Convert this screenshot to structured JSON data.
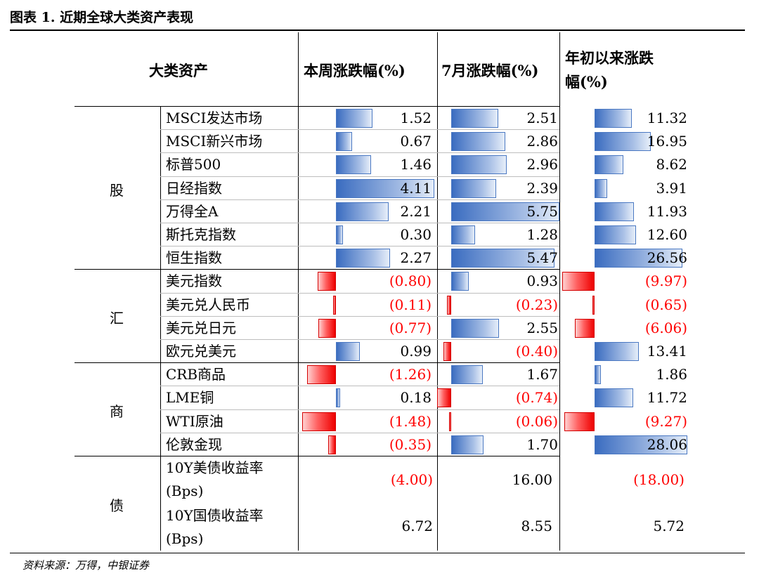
{
  "title": "图表 1. 近期全球大类资产表现",
  "source": "资料来源：万得，中银证券",
  "headers": {
    "asset": "大类资产",
    "week": "本周涨跌幅(%)",
    "month": "7月涨跌幅(%)",
    "ytd_line1": "年初以来涨跌",
    "ytd_line2": "幅(%)"
  },
  "categories": [
    "股",
    "汇",
    "商",
    "债"
  ],
  "rows": [
    {
      "name": "MSCI发达市场",
      "week": "1.52",
      "month": "2.51",
      "ytd": "11.32",
      "wv": 1.52,
      "mv": 2.51,
      "yv": 11.32
    },
    {
      "name": "MSCI新兴市场",
      "week": "0.67",
      "month": "2.86",
      "ytd": "16.95",
      "wv": 0.67,
      "mv": 2.86,
      "yv": 16.95
    },
    {
      "name": "标普500",
      "week": "1.46",
      "month": "2.96",
      "ytd": "8.62",
      "wv": 1.46,
      "mv": 2.96,
      "yv": 8.62
    },
    {
      "name": "日经指数",
      "week": "4.11",
      "month": "2.39",
      "ytd": "3.91",
      "wv": 4.11,
      "mv": 2.39,
      "yv": 3.91
    },
    {
      "name": "万得全A",
      "week": "2.21",
      "month": "5.75",
      "ytd": "11.93",
      "wv": 2.21,
      "mv": 5.75,
      "yv": 11.93
    },
    {
      "name": "斯托克指数",
      "week": "0.30",
      "month": "1.28",
      "ytd": "12.60",
      "wv": 0.3,
      "mv": 1.28,
      "yv": 12.6
    },
    {
      "name": "恒生指数",
      "week": "2.27",
      "month": "5.47",
      "ytd": "26.56",
      "wv": 2.27,
      "mv": 5.47,
      "yv": 26.56
    },
    {
      "name": "美元指数",
      "week": "(0.80)",
      "month": "0.93",
      "ytd": "(9.97)",
      "wv": -0.8,
      "mv": 0.93,
      "yv": -9.97
    },
    {
      "name": "美元兑人民币",
      "week": "(0.11)",
      "month": "(0.23)",
      "ytd": "(0.65)",
      "wv": -0.11,
      "mv": -0.23,
      "yv": -0.65
    },
    {
      "name": "美元兑日元",
      "week": "(0.77)",
      "month": "2.55",
      "ytd": "(6.06)",
      "wv": -0.77,
      "mv": 2.55,
      "yv": -6.06
    },
    {
      "name": "欧元兑美元",
      "week": "0.99",
      "month": "(0.40)",
      "ytd": "13.41",
      "wv": 0.99,
      "mv": -0.4,
      "yv": 13.41
    },
    {
      "name": "CRB商品",
      "week": "(1.26)",
      "month": "1.67",
      "ytd": "1.86",
      "wv": -1.26,
      "mv": 1.67,
      "yv": 1.86
    },
    {
      "name": "LME铜",
      "week": "0.18",
      "month": "(0.74)",
      "ytd": "11.72",
      "wv": 0.18,
      "mv": -0.74,
      "yv": 11.72
    },
    {
      "name": "WTI原油",
      "week": "(1.48)",
      "month": "(0.06)",
      "ytd": "(9.27)",
      "wv": -1.48,
      "mv": -0.06,
      "yv": -9.27
    },
    {
      "name": "伦敦金现",
      "week": "(0.35)",
      "month": "1.70",
      "ytd": "28.06",
      "wv": -0.35,
      "mv": 1.7,
      "yv": 28.06
    }
  ],
  "bond_rows": [
    {
      "name_line1": "10Y美债收益率",
      "name_line2": "(Bps)",
      "week": "(4.00)",
      "month": "16.00",
      "ytd": "(18.00)"
    },
    {
      "name_line1": "10Y国债收益率",
      "name_line2": "(Bps)",
      "week": "6.72",
      "month": "8.55",
      "ytd": "5.72"
    }
  ],
  "colors": {
    "positive_bar": "#3a6cc0",
    "negative_bar": "#ee0000",
    "negative_text": "#ff0000"
  }
}
